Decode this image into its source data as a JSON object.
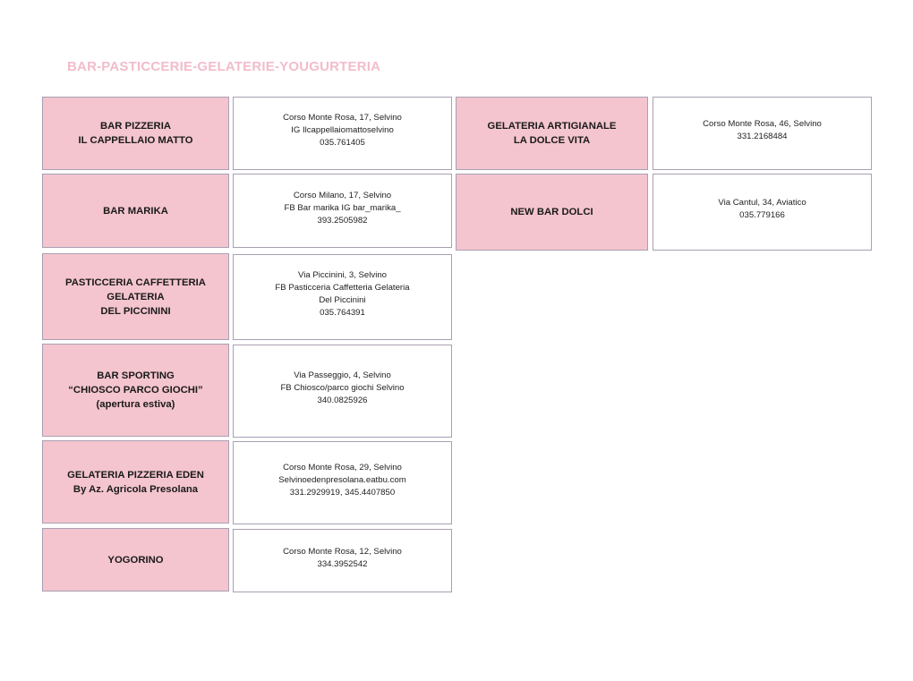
{
  "title": "BAR-PASTICCERIE-GELATERIE-YOUGURTERIA",
  "colors": {
    "title": "#f2bccb",
    "name_background": "#f4c5cf",
    "border": "#a99fb3"
  },
  "entries": [
    {
      "name": "BAR PIZZERIA\nIL CAPPELLAIO MATTO",
      "details": "Corso Monte Rosa, 17, Selvino\nIG Ilcappellaiomattoselvino\n035.761405"
    },
    {
      "name": "BAR MARIKA",
      "details": "Corso Milano, 17, Selvino\nFB Bar marika   IG bar_marika_\n393.2505982"
    },
    {
      "name": "PASTICCERIA CAFFETTERIA\nGELATERIA\nDEL PICCININI",
      "details": "Via Piccinini, 3, Selvino\nFB Pasticceria Caffetteria Gelateria\nDel Piccinini\n035.764391"
    },
    {
      "name": "BAR SPORTING\n“CHIOSCO PARCO GIOCHI”\n(apertura estiva)",
      "details": "Via Passeggio, 4, Selvino\nFB Chiosco/parco giochi Selvino\n340.0825926"
    },
    {
      "name": "GELATERIA PIZZERIA EDEN\nBy Az. Agricola Presolana",
      "details": "Corso Monte Rosa, 29, Selvino\nSelvinoedenpresolana.eatbu.com\n331.2929919, 345.4407850"
    },
    {
      "name": "YOGORINO",
      "details": "Corso Monte Rosa, 12, Selvino\n334.3952542"
    },
    {
      "name": "GELATERIA ARTIGIANALE\nLA DOLCE VITA",
      "details": "Corso Monte Rosa, 46, Selvino\n331.2168484"
    },
    {
      "name": "NEW BAR DOLCI",
      "details": "Via Cantul, 34, Aviatico\n035.779166"
    }
  ]
}
